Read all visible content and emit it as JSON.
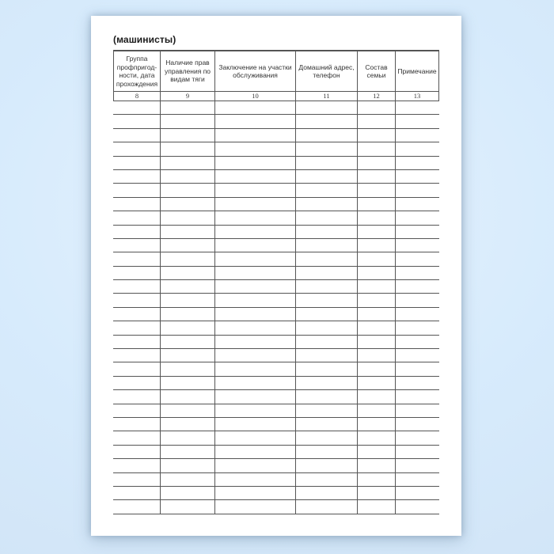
{
  "page": {
    "title": "(машинисты)"
  },
  "table": {
    "columns": [
      {
        "label": "Группа\nпрофпригод-\nности, дата\nпрохождения",
        "number": "8"
      },
      {
        "label": "Наличие прав\nуправления по\nвидам тяги",
        "number": "9"
      },
      {
        "label": "Заключение на участки\nобслуживания",
        "number": "10"
      },
      {
        "label": "Домашний адрес,\nтелефон",
        "number": "11"
      },
      {
        "label": "Состав\nсемьи",
        "number": "12"
      },
      {
        "label": "Примечание",
        "number": "13"
      }
    ],
    "empty_row_count": 30
  },
  "colors": {
    "background": "#d7ebfc",
    "paper": "#ffffff",
    "grid_line": "#555555",
    "header_text": "#333333",
    "title_text": "#1b1b1b"
  }
}
